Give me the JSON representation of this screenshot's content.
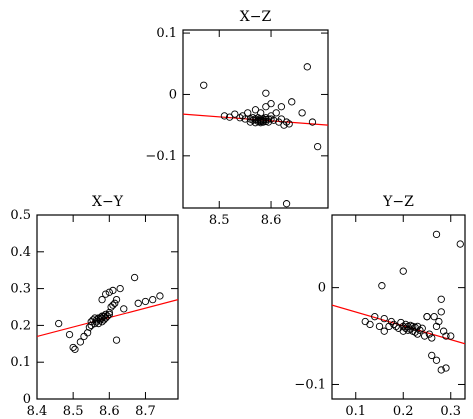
{
  "chart_data": [
    {
      "type": "scatter",
      "title": "X−Z",
      "xlim": [
        8.43,
        8.71
      ],
      "ylim": [
        -0.185,
        0.105
      ],
      "xticks": [
        {
          "v": 8.5,
          "label": "8.5"
        },
        {
          "v": 8.6,
          "label": "8.6"
        }
      ],
      "yticks": [
        {
          "v": 0.1,
          "label": "0.1"
        },
        {
          "v": 0,
          "label": "0"
        },
        {
          "v": -0.1,
          "label": "−0.1"
        }
      ],
      "marker_color": "#000000",
      "line_color": "#ff0000",
      "fit_line": {
        "x": [
          8.43,
          8.71
        ],
        "y": [
          -0.032,
          -0.05
        ]
      },
      "points": {
        "x": [
          8.47,
          8.51,
          8.52,
          8.53,
          8.54,
          8.545,
          8.55,
          8.555,
          8.56,
          8.56,
          8.565,
          8.565,
          8.57,
          8.57,
          8.575,
          8.575,
          8.575,
          8.58,
          8.58,
          8.58,
          8.58,
          8.585,
          8.585,
          8.585,
          8.59,
          8.59,
          8.59,
          8.595,
          8.595,
          8.6,
          8.6,
          8.605,
          8.61,
          8.615,
          8.62,
          8.625,
          8.63,
          8.635,
          8.64,
          8.66,
          8.67,
          8.68,
          8.69,
          8.59,
          8.59,
          8.6,
          8.62,
          8.63,
          8.57,
          8.58
        ],
        "y": [
          0.015,
          -0.035,
          -0.037,
          -0.032,
          -0.038,
          -0.035,
          -0.04,
          -0.03,
          -0.04,
          -0.045,
          -0.038,
          -0.042,
          -0.04,
          -0.046,
          -0.038,
          -0.042,
          -0.044,
          -0.04,
          -0.042,
          -0.044,
          -0.046,
          -0.04,
          -0.043,
          -0.045,
          -0.038,
          -0.041,
          -0.044,
          -0.04,
          -0.045,
          -0.035,
          -0.04,
          -0.042,
          -0.03,
          -0.045,
          -0.04,
          -0.05,
          -0.045,
          -0.048,
          -0.012,
          -0.03,
          0.045,
          -0.045,
          -0.085,
          0.002,
          -0.02,
          -0.015,
          -0.02,
          -0.178,
          -0.025,
          -0.03
        ]
      }
    },
    {
      "type": "scatter",
      "title": "X−Y",
      "xlim": [
        8.4,
        8.79
      ],
      "ylim": [
        0.0,
        0.5
      ],
      "xticks": [
        {
          "v": 8.4,
          "label": "8.4"
        },
        {
          "v": 8.5,
          "label": "8.5"
        },
        {
          "v": 8.6,
          "label": "8.6"
        },
        {
          "v": 8.7,
          "label": "8.7"
        }
      ],
      "yticks": [
        {
          "v": 0,
          "label": "0"
        },
        {
          "v": 0.1,
          "label": "0.1"
        },
        {
          "v": 0.2,
          "label": "0.2"
        },
        {
          "v": 0.3,
          "label": "0.3"
        },
        {
          "v": 0.4,
          "label": "0.4"
        },
        {
          "v": 0.5,
          "label": "0.5"
        }
      ],
      "marker_color": "#000000",
      "line_color": "#ff0000",
      "fit_line": {
        "x": [
          8.4,
          8.79
        ],
        "y": [
          0.17,
          0.27
        ]
      },
      "points": {
        "x": [
          8.46,
          8.49,
          8.5,
          8.505,
          8.52,
          8.53,
          8.54,
          8.545,
          8.55,
          8.55,
          8.555,
          8.56,
          8.56,
          8.565,
          8.565,
          8.57,
          8.57,
          8.575,
          8.575,
          8.58,
          8.58,
          8.58,
          8.585,
          8.585,
          8.59,
          8.59,
          8.595,
          8.6,
          8.6,
          8.605,
          8.61,
          8.615,
          8.62,
          8.63,
          8.64,
          8.67,
          8.68,
          8.7,
          8.72,
          8.74,
          8.58,
          8.59,
          8.6,
          8.61,
          8.62
        ],
        "y": [
          0.205,
          0.175,
          0.14,
          0.135,
          0.155,
          0.17,
          0.18,
          0.195,
          0.2,
          0.21,
          0.215,
          0.205,
          0.22,
          0.21,
          0.215,
          0.22,
          0.205,
          0.215,
          0.22,
          0.21,
          0.22,
          0.225,
          0.215,
          0.225,
          0.22,
          0.23,
          0.225,
          0.23,
          0.235,
          0.25,
          0.255,
          0.26,
          0.27,
          0.3,
          0.245,
          0.33,
          0.26,
          0.265,
          0.27,
          0.28,
          0.27,
          0.285,
          0.29,
          0.295,
          0.16
        ]
      }
    },
    {
      "type": "scatter",
      "title": "Y−Z",
      "xlim": [
        0.05,
        0.33
      ],
      "ylim": [
        -0.115,
        0.075
      ],
      "xticks": [
        {
          "v": 0.1,
          "label": "0.1"
        },
        {
          "v": 0.2,
          "label": "0.2"
        },
        {
          "v": 0.3,
          "label": "0.3"
        }
      ],
      "yticks": [
        {
          "v": 0,
          "label": "0"
        },
        {
          "v": -0.1,
          "label": "−0.1"
        }
      ],
      "marker_color": "#000000",
      "line_color": "#ff0000",
      "fit_line": {
        "x": [
          0.05,
          0.33
        ],
        "y": [
          -0.018,
          -0.058
        ]
      },
      "points": {
        "x": [
          0.12,
          0.13,
          0.14,
          0.15,
          0.155,
          0.16,
          0.17,
          0.175,
          0.18,
          0.185,
          0.19,
          0.195,
          0.2,
          0.2,
          0.205,
          0.205,
          0.21,
          0.21,
          0.215,
          0.215,
          0.22,
          0.22,
          0.225,
          0.225,
          0.23,
          0.23,
          0.235,
          0.24,
          0.245,
          0.25,
          0.255,
          0.26,
          0.265,
          0.27,
          0.275,
          0.28,
          0.285,
          0.29,
          0.3,
          0.32,
          0.27,
          0.28,
          0.26,
          0.29,
          0.2,
          0.16,
          0.27,
          0.28,
          0.25
        ],
        "y": [
          -0.035,
          -0.038,
          -0.03,
          -0.04,
          0.002,
          -0.032,
          -0.04,
          -0.035,
          -0.038,
          -0.04,
          -0.042,
          -0.036,
          -0.04,
          -0.045,
          -0.038,
          -0.042,
          -0.04,
          -0.044,
          -0.039,
          -0.043,
          -0.04,
          -0.045,
          -0.041,
          -0.046,
          -0.04,
          -0.048,
          -0.044,
          -0.042,
          -0.05,
          -0.03,
          -0.048,
          -0.052,
          -0.03,
          -0.04,
          -0.035,
          -0.025,
          -0.045,
          -0.05,
          -0.05,
          0.045,
          0.055,
          -0.085,
          -0.07,
          -0.083,
          0.017,
          -0.045,
          -0.075,
          -0.012,
          -0.03
        ]
      }
    }
  ]
}
